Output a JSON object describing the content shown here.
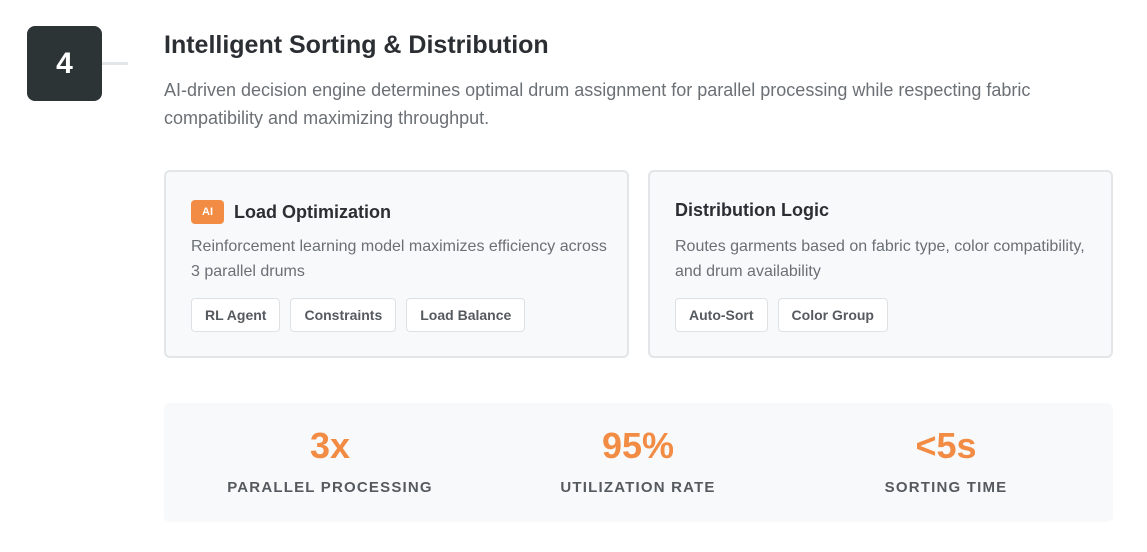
{
  "step": {
    "number": "4"
  },
  "header": {
    "title": "Intelligent Sorting & Distribution",
    "description": "AI-driven decision engine determines optimal drum assignment for parallel processing while respecting fabric compatibility and maximizing throughput."
  },
  "cards": [
    {
      "badge": "AI",
      "title": "Load Optimization",
      "text": "Reinforcement learning model maximizes efficiency across 3 parallel drums",
      "tags": [
        "RL Agent",
        "Constraints",
        "Load Balance"
      ]
    },
    {
      "title": "Distribution Logic",
      "text": "Routes garments based on fabric type, color compatibility, and drum availability",
      "tags": [
        "Auto-Sort",
        "Color Group"
      ]
    }
  ],
  "stats": [
    {
      "value": "3x",
      "label": "PARALLEL PROCESSING"
    },
    {
      "value": "95%",
      "label": "UTILIZATION RATE"
    },
    {
      "value": "<5s",
      "label": "SORTING TIME"
    }
  ],
  "colors": {
    "accent": "#f28c45",
    "badge_bg": "#2d3436",
    "card_bg": "#f7f9fa"
  }
}
